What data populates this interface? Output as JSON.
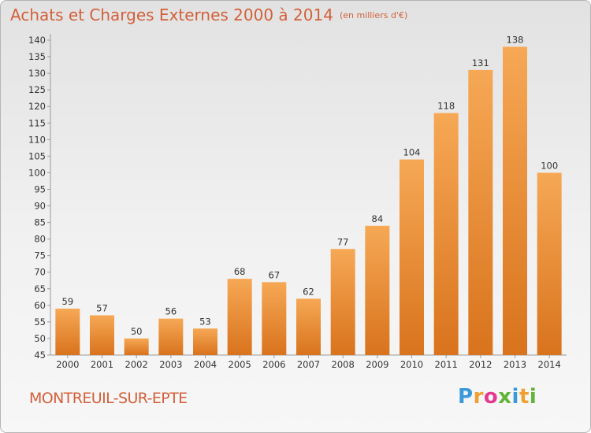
{
  "header": {
    "title": "Achats et Charges Externes 2000 à 2014",
    "unit": "(en milliers d'€)"
  },
  "footer": {
    "place": "MONTREUIL-SUR-EPTE",
    "logo_letters": [
      "P",
      "r",
      "o",
      "x",
      "i",
      "t",
      "i"
    ],
    "logo_colors": [
      "#3a9ad9",
      "#f0a030",
      "#e23a8e",
      "#62b33a",
      "#3a9ad9",
      "#f0a030",
      "#62b33a"
    ]
  },
  "colors": {
    "bar_light": "#f6a855",
    "bar_dark": "#d9731d",
    "title": "#d2603a"
  },
  "chart_data": {
    "type": "bar",
    "categories": [
      "2000",
      "2001",
      "2002",
      "2003",
      "2004",
      "2005",
      "2006",
      "2007",
      "2008",
      "2009",
      "2010",
      "2011",
      "2012",
      "2013",
      "2014"
    ],
    "values": [
      59,
      57,
      50,
      56,
      53,
      68,
      67,
      62,
      77,
      84,
      104,
      118,
      131,
      138,
      100
    ],
    "title": "Achats et Charges Externes 2000 à 2014",
    "xlabel": "",
    "ylabel": "",
    "ylim": [
      45,
      140
    ],
    "ytick_step": 5,
    "grid": false
  }
}
